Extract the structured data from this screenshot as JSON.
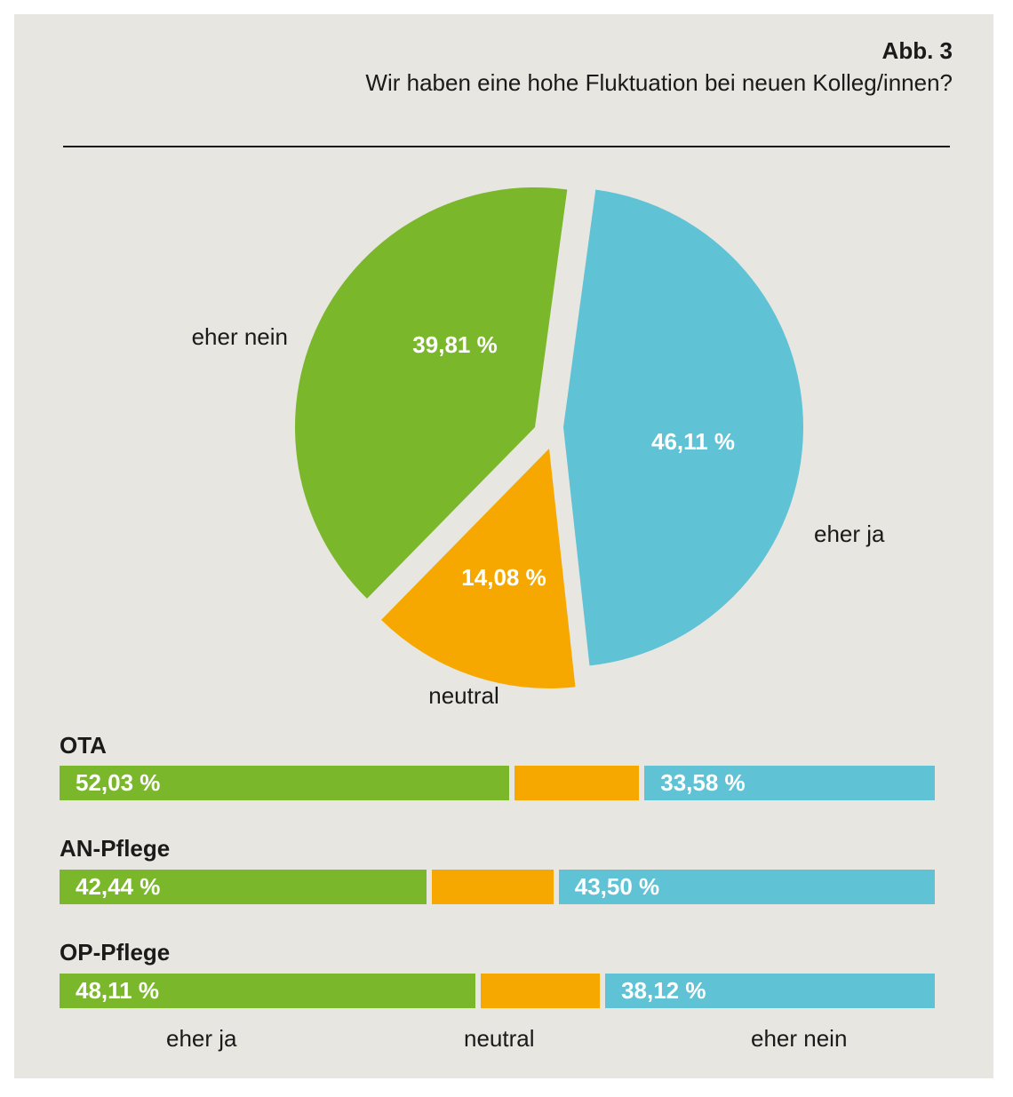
{
  "figure_label": "Abb. 3",
  "figure_title": "Wir haben eine hohe Fluktuation bei neuen Kolleg/innen?",
  "colors": {
    "eher_ja": "#7ab72b",
    "neutral": "#f6a800",
    "eher_nein": "#5fc2d5",
    "background": "#e8e6e1"
  },
  "chart_data": [
    {
      "type": "pie",
      "title": "",
      "slices": [
        {
          "label": "eher ja",
          "value": 46.11,
          "value_label": "46,11 %",
          "color": "#5fc2d5"
        },
        {
          "label": "neutral",
          "value": 14.08,
          "value_label": "14,08 %",
          "color": "#f6a800"
        },
        {
          "label": "eher nein",
          "value": 39.81,
          "value_label": "39,81 %",
          "color": "#7ab72b"
        }
      ]
    },
    {
      "type": "bar",
      "orientation": "horizontal",
      "stacked": true,
      "categories": [
        "OTA",
        "AN-Pflege",
        "OP-Pflege"
      ],
      "legend": [
        "eher ja",
        "neutral",
        "eher nein"
      ],
      "series": [
        {
          "name": "eher ja",
          "color": "#7ab72b",
          "values": [
            52.03,
            42.44,
            48.11
          ],
          "value_labels": [
            "52,03 %",
            "42,44 %",
            "48,11 %"
          ]
        },
        {
          "name": "neutral",
          "color": "#f6a800",
          "values": [
            14.39,
            14.06,
            13.77
          ],
          "value_labels": [
            "",
            "",
            ""
          ]
        },
        {
          "name": "eher nein",
          "color": "#5fc2d5",
          "values": [
            33.58,
            43.5,
            38.12
          ],
          "value_labels": [
            "33,58 %",
            "43,50 %",
            "38,12 %"
          ]
        }
      ],
      "xlim": [
        0,
        100
      ]
    }
  ]
}
